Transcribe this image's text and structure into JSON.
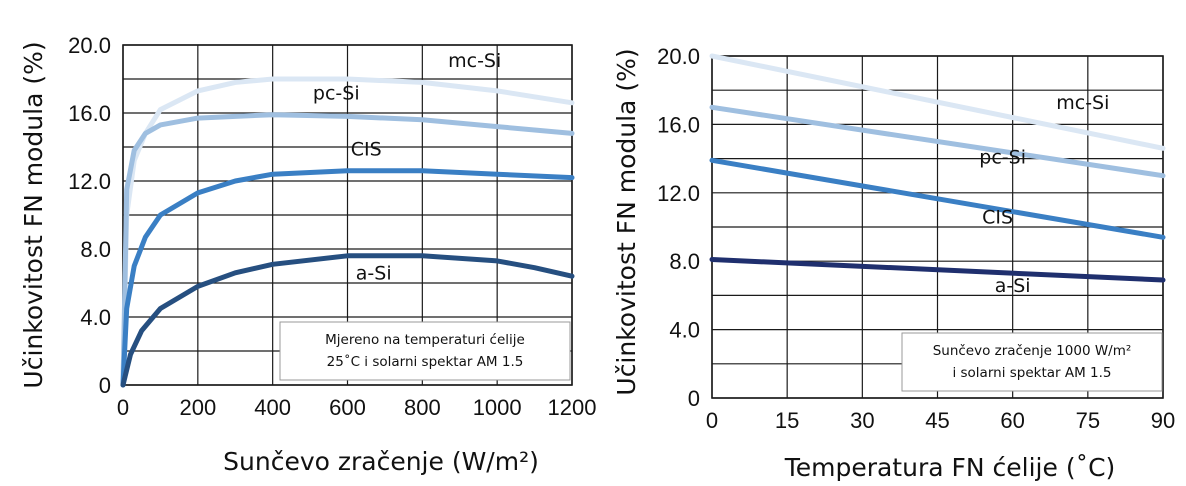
{
  "chart_data": [
    {
      "type": "line",
      "ylabel": "Učinkovitost FN modula (%)",
      "xlabel": "Sunčevo zračenje (W/m²)",
      "x_ticks": [
        "0",
        "200",
        "400",
        "600",
        "800",
        "1000",
        "1200"
      ],
      "y_ticks": [
        "0",
        "4.0",
        "8.0",
        "12.0",
        "16.0",
        "20.0"
      ],
      "xlim": [
        0,
        1200
      ],
      "ylim": [
        0,
        20
      ],
      "grid": true,
      "note": [
        "Mjereno na temperaturi ćelije",
        "25˚C i solarni spektar AM 1.5"
      ],
      "series": [
        {
          "name": "mc-Si",
          "color": "#dbe7f4",
          "x": [
            0,
            10,
            30,
            60,
            100,
            200,
            300,
            400,
            600,
            800,
            1000,
            1200
          ],
          "y": [
            0,
            10,
            13.2,
            14.8,
            16.2,
            17.3,
            17.8,
            18.0,
            18.0,
            17.8,
            17.3,
            16.6
          ]
        },
        {
          "name": "pc-Si",
          "color": "#9fbfe0",
          "x": [
            0,
            10,
            30,
            60,
            100,
            200,
            300,
            400,
            600,
            800,
            1000,
            1200
          ],
          "y": [
            0,
            11.5,
            13.8,
            14.8,
            15.3,
            15.7,
            15.8,
            15.9,
            15.8,
            15.6,
            15.2,
            14.8
          ]
        },
        {
          "name": "CIS",
          "color": "#3a7fc4",
          "x": [
            0,
            10,
            30,
            60,
            100,
            200,
            300,
            400,
            600,
            800,
            1000,
            1200
          ],
          "y": [
            0,
            4.5,
            7.0,
            8.7,
            10.0,
            11.3,
            12.0,
            12.4,
            12.6,
            12.6,
            12.4,
            12.2
          ]
        },
        {
          "name": "a-Si",
          "color": "#264f80",
          "x": [
            0,
            20,
            50,
            100,
            200,
            300,
            400,
            600,
            800,
            1000,
            1100,
            1200
          ],
          "y": [
            0,
            1.8,
            3.2,
            4.5,
            5.8,
            6.6,
            7.1,
            7.6,
            7.6,
            7.3,
            6.9,
            6.4
          ]
        }
      ],
      "series_labels_at": [
        {
          "name": "mc-Si",
          "x": 940,
          "y": 18.7
        },
        {
          "name": "pc-Si",
          "x": 570,
          "y": 16.8
        },
        {
          "name": "CIS",
          "x": 650,
          "y": 13.5
        },
        {
          "name": "a-Si",
          "x": 670,
          "y": 6.2
        }
      ]
    },
    {
      "type": "line",
      "ylabel": "Učinkovitost FN modula (%)",
      "xlabel": "Temperatura  FN ćelije (˚C)",
      "x_ticks": [
        "0",
        "15",
        "30",
        "45",
        "60",
        "75",
        "90"
      ],
      "y_ticks": [
        "0",
        "4.0",
        "8.0",
        "12.0",
        "16.0",
        "20.0"
      ],
      "xlim": [
        0,
        90
      ],
      "ylim": [
        0,
        20
      ],
      "grid": true,
      "note": [
        "Sunčevo zračenje 1000 W/m²",
        "i solarni spektar AM 1.5"
      ],
      "series": [
        {
          "name": "mc-Si",
          "color": "#dbe7f4",
          "x": [
            0,
            90
          ],
          "y": [
            20.0,
            14.6
          ]
        },
        {
          "name": "pc-Si",
          "color": "#9fbfe0",
          "x": [
            0,
            90
          ],
          "y": [
            17.0,
            13.0
          ]
        },
        {
          "name": "CIS",
          "color": "#3a7fc4",
          "x": [
            0,
            90
          ],
          "y": [
            13.9,
            9.4
          ]
        },
        {
          "name": "a-Si",
          "color": "#1f2f6e",
          "x": [
            0,
            90
          ],
          "y": [
            8.1,
            6.9
          ]
        }
      ],
      "series_labels_at": [
        {
          "name": "mc-Si",
          "x": 74,
          "y": 16.9
        },
        {
          "name": "pc-Si",
          "x": 58,
          "y": 13.7
        },
        {
          "name": "CIS",
          "x": 57,
          "y": 10.2
        },
        {
          "name": "a-Si",
          "x": 60,
          "y": 6.2
        }
      ]
    }
  ]
}
